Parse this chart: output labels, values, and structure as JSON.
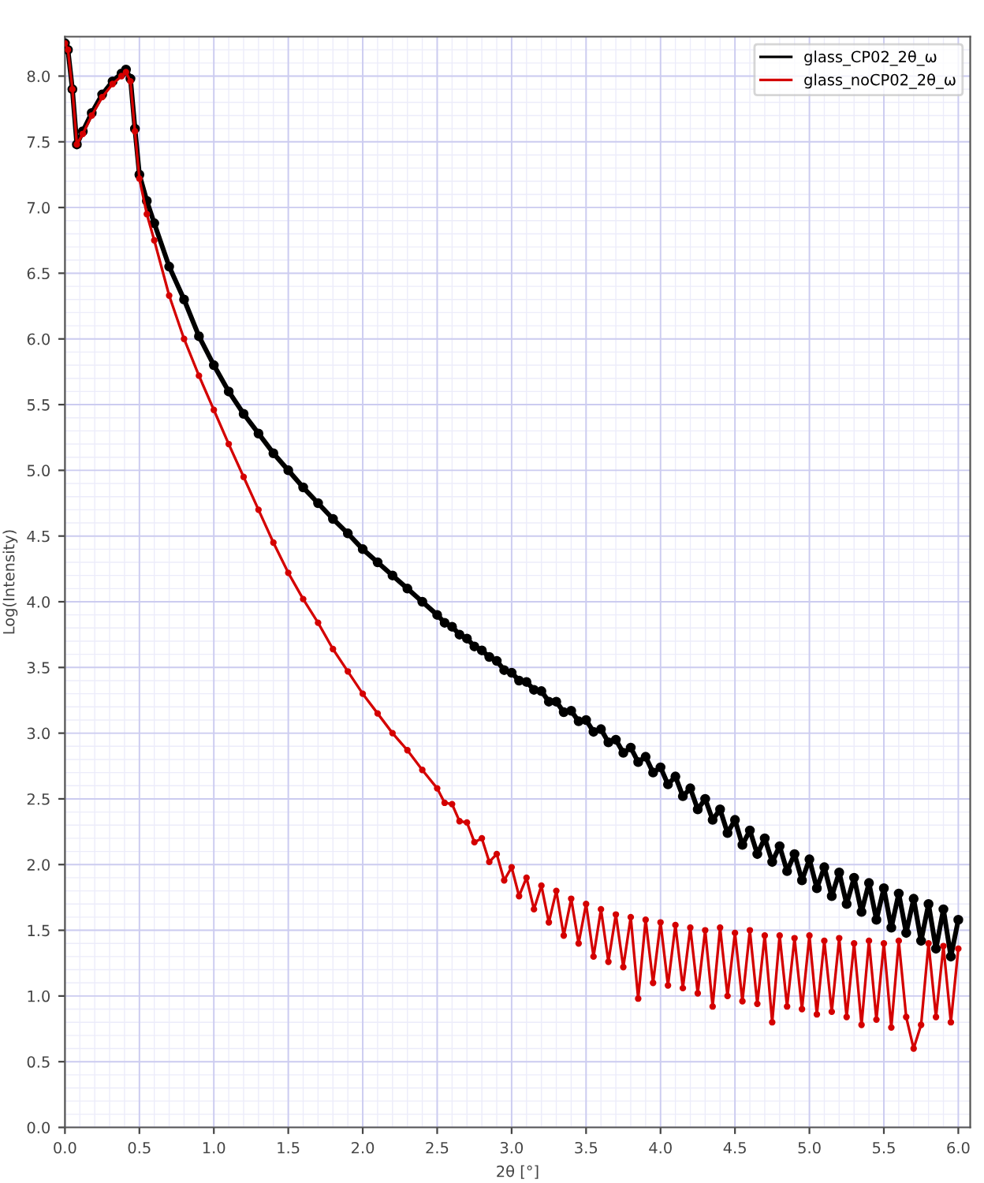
{
  "chart_data": {
    "type": "line",
    "xlabel": "2θ [°]",
    "ylabel": "Log(Intensity)",
    "x": [
      0,
      0.02,
      0.05,
      0.08,
      0.12,
      0.18,
      0.25,
      0.32,
      0.38,
      0.41,
      0.44,
      0.47,
      0.5,
      0.55,
      0.6,
      0.7,
      0.8,
      0.9,
      1.0,
      1.1,
      1.2,
      1.3,
      1.4,
      1.5,
      1.6,
      1.7,
      1.8,
      1.9,
      2.0,
      2.1,
      2.2,
      2.3,
      2.4,
      2.5,
      2.55,
      2.6,
      2.65,
      2.7,
      2.75,
      2.8,
      2.85,
      2.9,
      2.95,
      3.0,
      3.05,
      3.1,
      3.15,
      3.2,
      3.25,
      3.3,
      3.35,
      3.4,
      3.45,
      3.5,
      3.55,
      3.6,
      3.65,
      3.7,
      3.75,
      3.8,
      3.85,
      3.9,
      3.95,
      4.0,
      4.05,
      4.1,
      4.15,
      4.2,
      4.25,
      4.3,
      4.35,
      4.4,
      4.45,
      4.5,
      4.55,
      4.6,
      4.65,
      4.7,
      4.75,
      4.8,
      4.85,
      4.9,
      4.95,
      5.0,
      5.05,
      5.1,
      5.15,
      5.2,
      5.25,
      5.3,
      5.35,
      5.4,
      5.45,
      5.5,
      5.55,
      5.6,
      5.65,
      5.7,
      5.75,
      5.8,
      5.85,
      5.9,
      5.95,
      6.0
    ],
    "series": [
      {
        "name": "glass_CP02_2θ_ω",
        "color": "#000000",
        "values": [
          8.25,
          8.2,
          7.9,
          7.48,
          7.58,
          7.72,
          7.86,
          7.96,
          8.02,
          8.05,
          7.98,
          7.6,
          7.25,
          7.05,
          6.88,
          6.55,
          6.3,
          6.02,
          5.8,
          5.6,
          5.43,
          5.28,
          5.13,
          5.0,
          4.87,
          4.75,
          4.63,
          4.52,
          4.4,
          4.3,
          4.2,
          4.1,
          4.0,
          3.9,
          3.84,
          3.81,
          3.75,
          3.72,
          3.66,
          3.63,
          3.58,
          3.55,
          3.48,
          3.46,
          3.4,
          3.39,
          3.33,
          3.32,
          3.24,
          3.24,
          3.16,
          3.17,
          3.09,
          3.1,
          3.01,
          3.03,
          2.93,
          2.95,
          2.85,
          2.89,
          2.78,
          2.82,
          2.7,
          2.74,
          2.61,
          2.67,
          2.52,
          2.58,
          2.42,
          2.5,
          2.34,
          2.42,
          2.24,
          2.34,
          2.15,
          2.26,
          2.08,
          2.2,
          2.02,
          2.14,
          1.95,
          2.08,
          1.88,
          2.04,
          1.82,
          1.98,
          1.76,
          1.94,
          1.7,
          1.9,
          1.64,
          1.86,
          1.58,
          1.82,
          1.52,
          1.78,
          1.48,
          1.74,
          1.42,
          1.7,
          1.36,
          1.66,
          1.3,
          1.58
        ]
      },
      {
        "name": "glass_noCP02_2θ_ω",
        "color": "#d40000",
        "values": [
          8.25,
          8.2,
          7.9,
          7.48,
          7.56,
          7.7,
          7.84,
          7.94,
          8.0,
          8.03,
          7.96,
          7.58,
          7.22,
          6.95,
          6.75,
          6.33,
          6.0,
          5.72,
          5.46,
          5.2,
          4.95,
          4.7,
          4.45,
          4.22,
          4.02,
          3.84,
          3.64,
          3.47,
          3.3,
          3.15,
          3.0,
          2.87,
          2.72,
          2.58,
          2.47,
          2.46,
          2.33,
          2.32,
          2.17,
          2.2,
          2.02,
          2.08,
          1.88,
          1.98,
          1.76,
          1.9,
          1.66,
          1.84,
          1.56,
          1.8,
          1.46,
          1.74,
          1.4,
          1.7,
          1.3,
          1.66,
          1.26,
          1.62,
          1.22,
          1.6,
          0.98,
          1.58,
          1.1,
          1.56,
          1.08,
          1.54,
          1.06,
          1.52,
          1.02,
          1.5,
          0.92,
          1.52,
          1.0,
          1.48,
          0.96,
          1.5,
          0.94,
          1.46,
          0.8,
          1.46,
          0.92,
          1.44,
          0.9,
          1.46,
          0.86,
          1.42,
          0.88,
          1.44,
          0.84,
          1.4,
          0.78,
          1.42,
          0.82,
          1.4,
          0.76,
          1.42,
          0.84,
          0.6,
          0.78,
          1.4,
          0.84,
          1.38,
          0.8,
          1.36
        ]
      }
    ],
    "xlim": [
      0,
      6.08
    ],
    "ylim": [
      0,
      8.3
    ],
    "xticks": [
      {
        "value": 0,
        "label": "0.0"
      },
      {
        "value": 0.5,
        "label": "0.5"
      },
      {
        "value": 1,
        "label": "1.0"
      },
      {
        "value": 1.5,
        "label": "1.5"
      },
      {
        "value": 2,
        "label": "2.0"
      },
      {
        "value": 2.5,
        "label": "2.5"
      },
      {
        "value": 3,
        "label": "3.0"
      },
      {
        "value": 3.5,
        "label": "3.5"
      },
      {
        "value": 4,
        "label": "4.0"
      },
      {
        "value": 4.5,
        "label": "4.5"
      },
      {
        "value": 5,
        "label": "5.0"
      },
      {
        "value": 5.5,
        "label": "5.5"
      },
      {
        "value": 6,
        "label": "6.0"
      }
    ],
    "yticks": [
      {
        "value": 0,
        "label": "0.0"
      },
      {
        "value": 0.5,
        "label": "0.5"
      },
      {
        "value": 1,
        "label": "1.0"
      },
      {
        "value": 1.5,
        "label": "1.5"
      },
      {
        "value": 2,
        "label": "2.0"
      },
      {
        "value": 2.5,
        "label": "2.5"
      },
      {
        "value": 3,
        "label": "3.0"
      },
      {
        "value": 3.5,
        "label": "3.5"
      },
      {
        "value": 4,
        "label": "4.0"
      },
      {
        "value": 4.5,
        "label": "4.5"
      },
      {
        "value": 5,
        "label": "5.0"
      },
      {
        "value": 5.5,
        "label": "5.5"
      },
      {
        "value": 6,
        "label": "6.0"
      },
      {
        "value": 6.5,
        "label": "6.5"
      },
      {
        "value": 7,
        "label": "7.0"
      },
      {
        "value": 7.5,
        "label": "7.5"
      },
      {
        "value": 8,
        "label": "8.0"
      }
    ],
    "grid": true,
    "legend": "top right",
    "marker": "circle",
    "line_style": "solid"
  }
}
